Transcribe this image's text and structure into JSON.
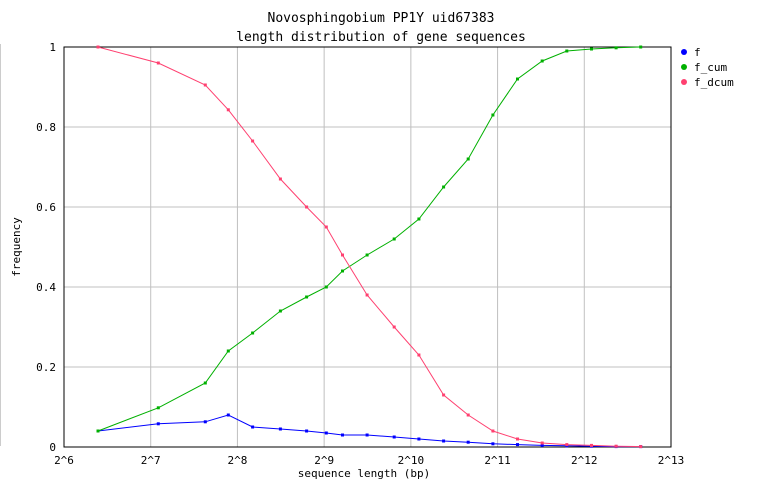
{
  "chart_data": {
    "type": "line",
    "title_lines": [
      "Novosphingobium PP1Y uid67383",
      "length distribution of gene sequences"
    ],
    "xlabel": "sequence length (bp)",
    "ylabel": "frequency",
    "x_scale": "log2",
    "xlim": [
      64,
      8192
    ],
    "ylim": [
      0,
      1
    ],
    "x_tick_labels": [
      "2^6",
      "2^7",
      "2^8",
      "2^9",
      "2^10",
      "2^11",
      "2^12",
      "2^13"
    ],
    "y_tick_labels": [
      "0",
      "0.2",
      "0.4",
      "0.6",
      "0.8",
      "1"
    ],
    "grid": true,
    "legend_position": "right",
    "series": [
      {
        "name": "f",
        "color": "#0000ff",
        "x": [
          84,
          136,
          198,
          238,
          289,
          361,
          445,
          521,
          593,
          722,
          896,
          1092,
          1330,
          1620,
          1973,
          2402,
          2925,
          3562,
          4338,
          5282,
          6432
        ],
        "y": [
          0.04,
          0.058,
          0.063,
          0.08,
          0.05,
          0.045,
          0.04,
          0.035,
          0.03,
          0.03,
          0.025,
          0.02,
          0.015,
          0.012,
          0.008,
          0.006,
          0.004,
          0.003,
          0.002,
          0.001,
          0.001
        ]
      },
      {
        "name": "f_cum",
        "color": "#00b000",
        "x": [
          84,
          136,
          198,
          238,
          289,
          361,
          445,
          521,
          593,
          722,
          896,
          1092,
          1330,
          1620,
          1973,
          2402,
          2925,
          3562,
          4338,
          5282,
          6432
        ],
        "y": [
          0.04,
          0.098,
          0.16,
          0.24,
          0.285,
          0.34,
          0.375,
          0.4,
          0.44,
          0.48,
          0.52,
          0.57,
          0.65,
          0.72,
          0.83,
          0.92,
          0.965,
          0.99,
          0.995,
          0.998,
          1.0
        ]
      },
      {
        "name": "f_dcum",
        "color": "#ff4070",
        "x": [
          84,
          136,
          198,
          238,
          289,
          361,
          445,
          521,
          593,
          722,
          896,
          1092,
          1330,
          1620,
          1973,
          2402,
          2925,
          3562,
          4338,
          5282,
          6432
        ],
        "y": [
          1.0,
          0.96,
          0.905,
          0.843,
          0.765,
          0.67,
          0.6,
          0.55,
          0.48,
          0.38,
          0.3,
          0.23,
          0.13,
          0.08,
          0.04,
          0.02,
          0.01,
          0.006,
          0.004,
          0.002,
          0.001
        ]
      }
    ]
  }
}
